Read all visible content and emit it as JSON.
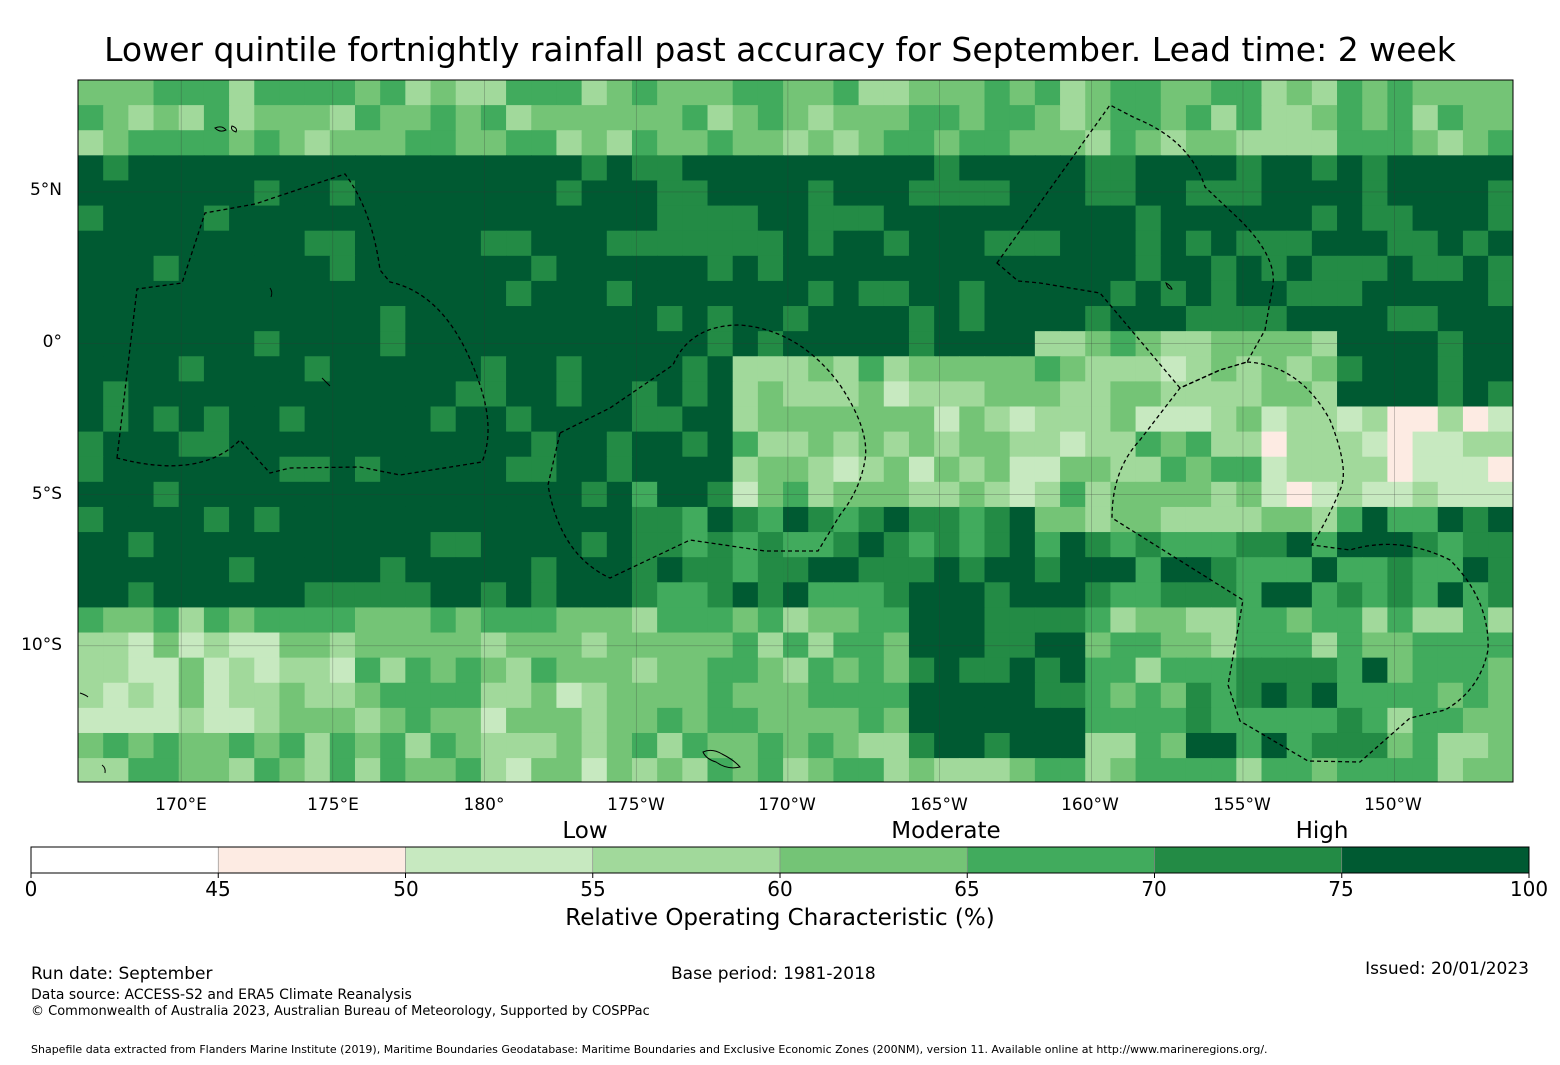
{
  "title": "Lower quintile fortnightly rainfall past accuracy for September. Lead time: 2 week",
  "map": {
    "region": "South-west Pacific",
    "lat_range": [
      -14.5,
      8.7
    ],
    "lon_range_east": [
      166.6,
      213.9
    ],
    "lat_labels": [
      "5°N",
      "0°",
      "5°S",
      "10°S"
    ],
    "lon_labels": [
      "170°E",
      "175°E",
      "180°",
      "175°W",
      "170°W",
      "165°W",
      "160°W",
      "155°W",
      "150°W"
    ],
    "grid_resolution_deg": 0.83
  },
  "chart_data": {
    "type": "heatmap",
    "title": "Lower quintile fortnightly rainfall past accuracy for September. Lead time: 2 week",
    "variable": "Relative Operating Characteristic (%)",
    "bins": [
      {
        "range": [
          0,
          45
        ],
        "color": "#ffffff"
      },
      {
        "range": [
          45,
          50
        ],
        "color": "#fdebe3"
      },
      {
        "range": [
          50,
          55
        ],
        "color": "#c7e9c0"
      },
      {
        "range": [
          55,
          60
        ],
        "color": "#a1d99b"
      },
      {
        "range": [
          60,
          65
        ],
        "color": "#74c476"
      },
      {
        "range": [
          65,
          70
        ],
        "color": "#41ab5d"
      },
      {
        "range": [
          70,
          75
        ],
        "color": "#238b45"
      },
      {
        "range": [
          75,
          100
        ],
        "color": "#005a32"
      }
    ],
    "categories": [
      "Low",
      "Moderate",
      "High"
    ],
    "ticks": [
      "0",
      "45",
      "50",
      "55",
      "60",
      "65",
      "70",
      "75",
      "100"
    ]
  },
  "colorbar": {
    "category_labels": [
      "Low",
      "Moderate",
      "High"
    ],
    "tick_labels": [
      "0",
      "45",
      "50",
      "55",
      "60",
      "65",
      "70",
      "75",
      "100"
    ],
    "title": "Relative Operating Characteristic (%)"
  },
  "footer": {
    "run_date": "Run date: September",
    "base_period": "Base period: 1981-2018",
    "issued": "Issued: 20/01/2023",
    "data_source": "Data source: ACCESS-S2 and ERA5 Climate Reanalysis",
    "copyright": "© Commonwealth of Australia 2023, Australian Bureau of Meteorology, Supported by COSPPac",
    "shapefile": "Shapefile data extracted from Flanders Marine Institute (2019), Maritime Boundaries Geodatabase: Maritime Boundaries and Exclusive Economic Zones (200NM), version 11. Available online at http://www.marineregions.org/."
  },
  "colors": {
    "eez_boundary": "#000000",
    "gridline": "#333333"
  }
}
